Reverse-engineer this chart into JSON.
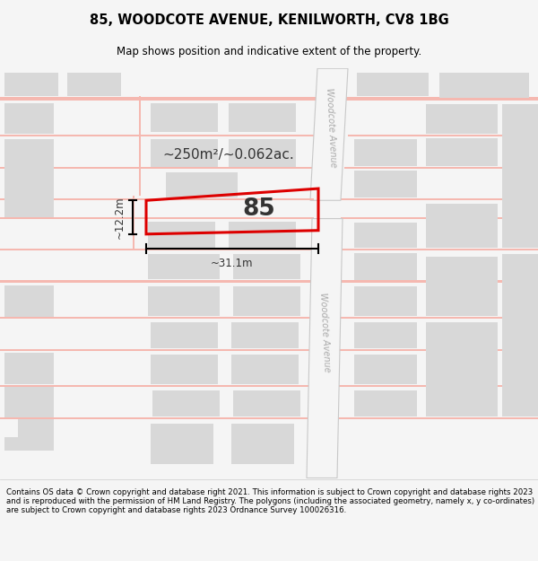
{
  "title": "85, WOODCOTE AVENUE, KENILWORTH, CV8 1BG",
  "subtitle": "Map shows position and indicative extent of the property.",
  "footer": "Contains OS data © Crown copyright and database right 2021. This information is subject to Crown copyright and database rights 2023 and is reproduced with the permission of HM Land Registry. The polygons (including the associated geometry, namely x, y co-ordinates) are subject to Crown copyright and database rights 2023 Ordnance Survey 100026316.",
  "area_text": "~250m²/~0.062ac.",
  "property_number": "85",
  "dim_width": "~31.1m",
  "dim_height": "~12.2m",
  "road_label_1": "Woodcote Avenue",
  "road_label_2": "Woodcote Avenue",
  "plot_color": "#dd0000",
  "road_color": "#f5b8b0",
  "road_bg": "#f5f5f5",
  "building_color": "#d8d8d8",
  "road_edge_color": "#c8c8c8",
  "map_bg": "#ffffff"
}
